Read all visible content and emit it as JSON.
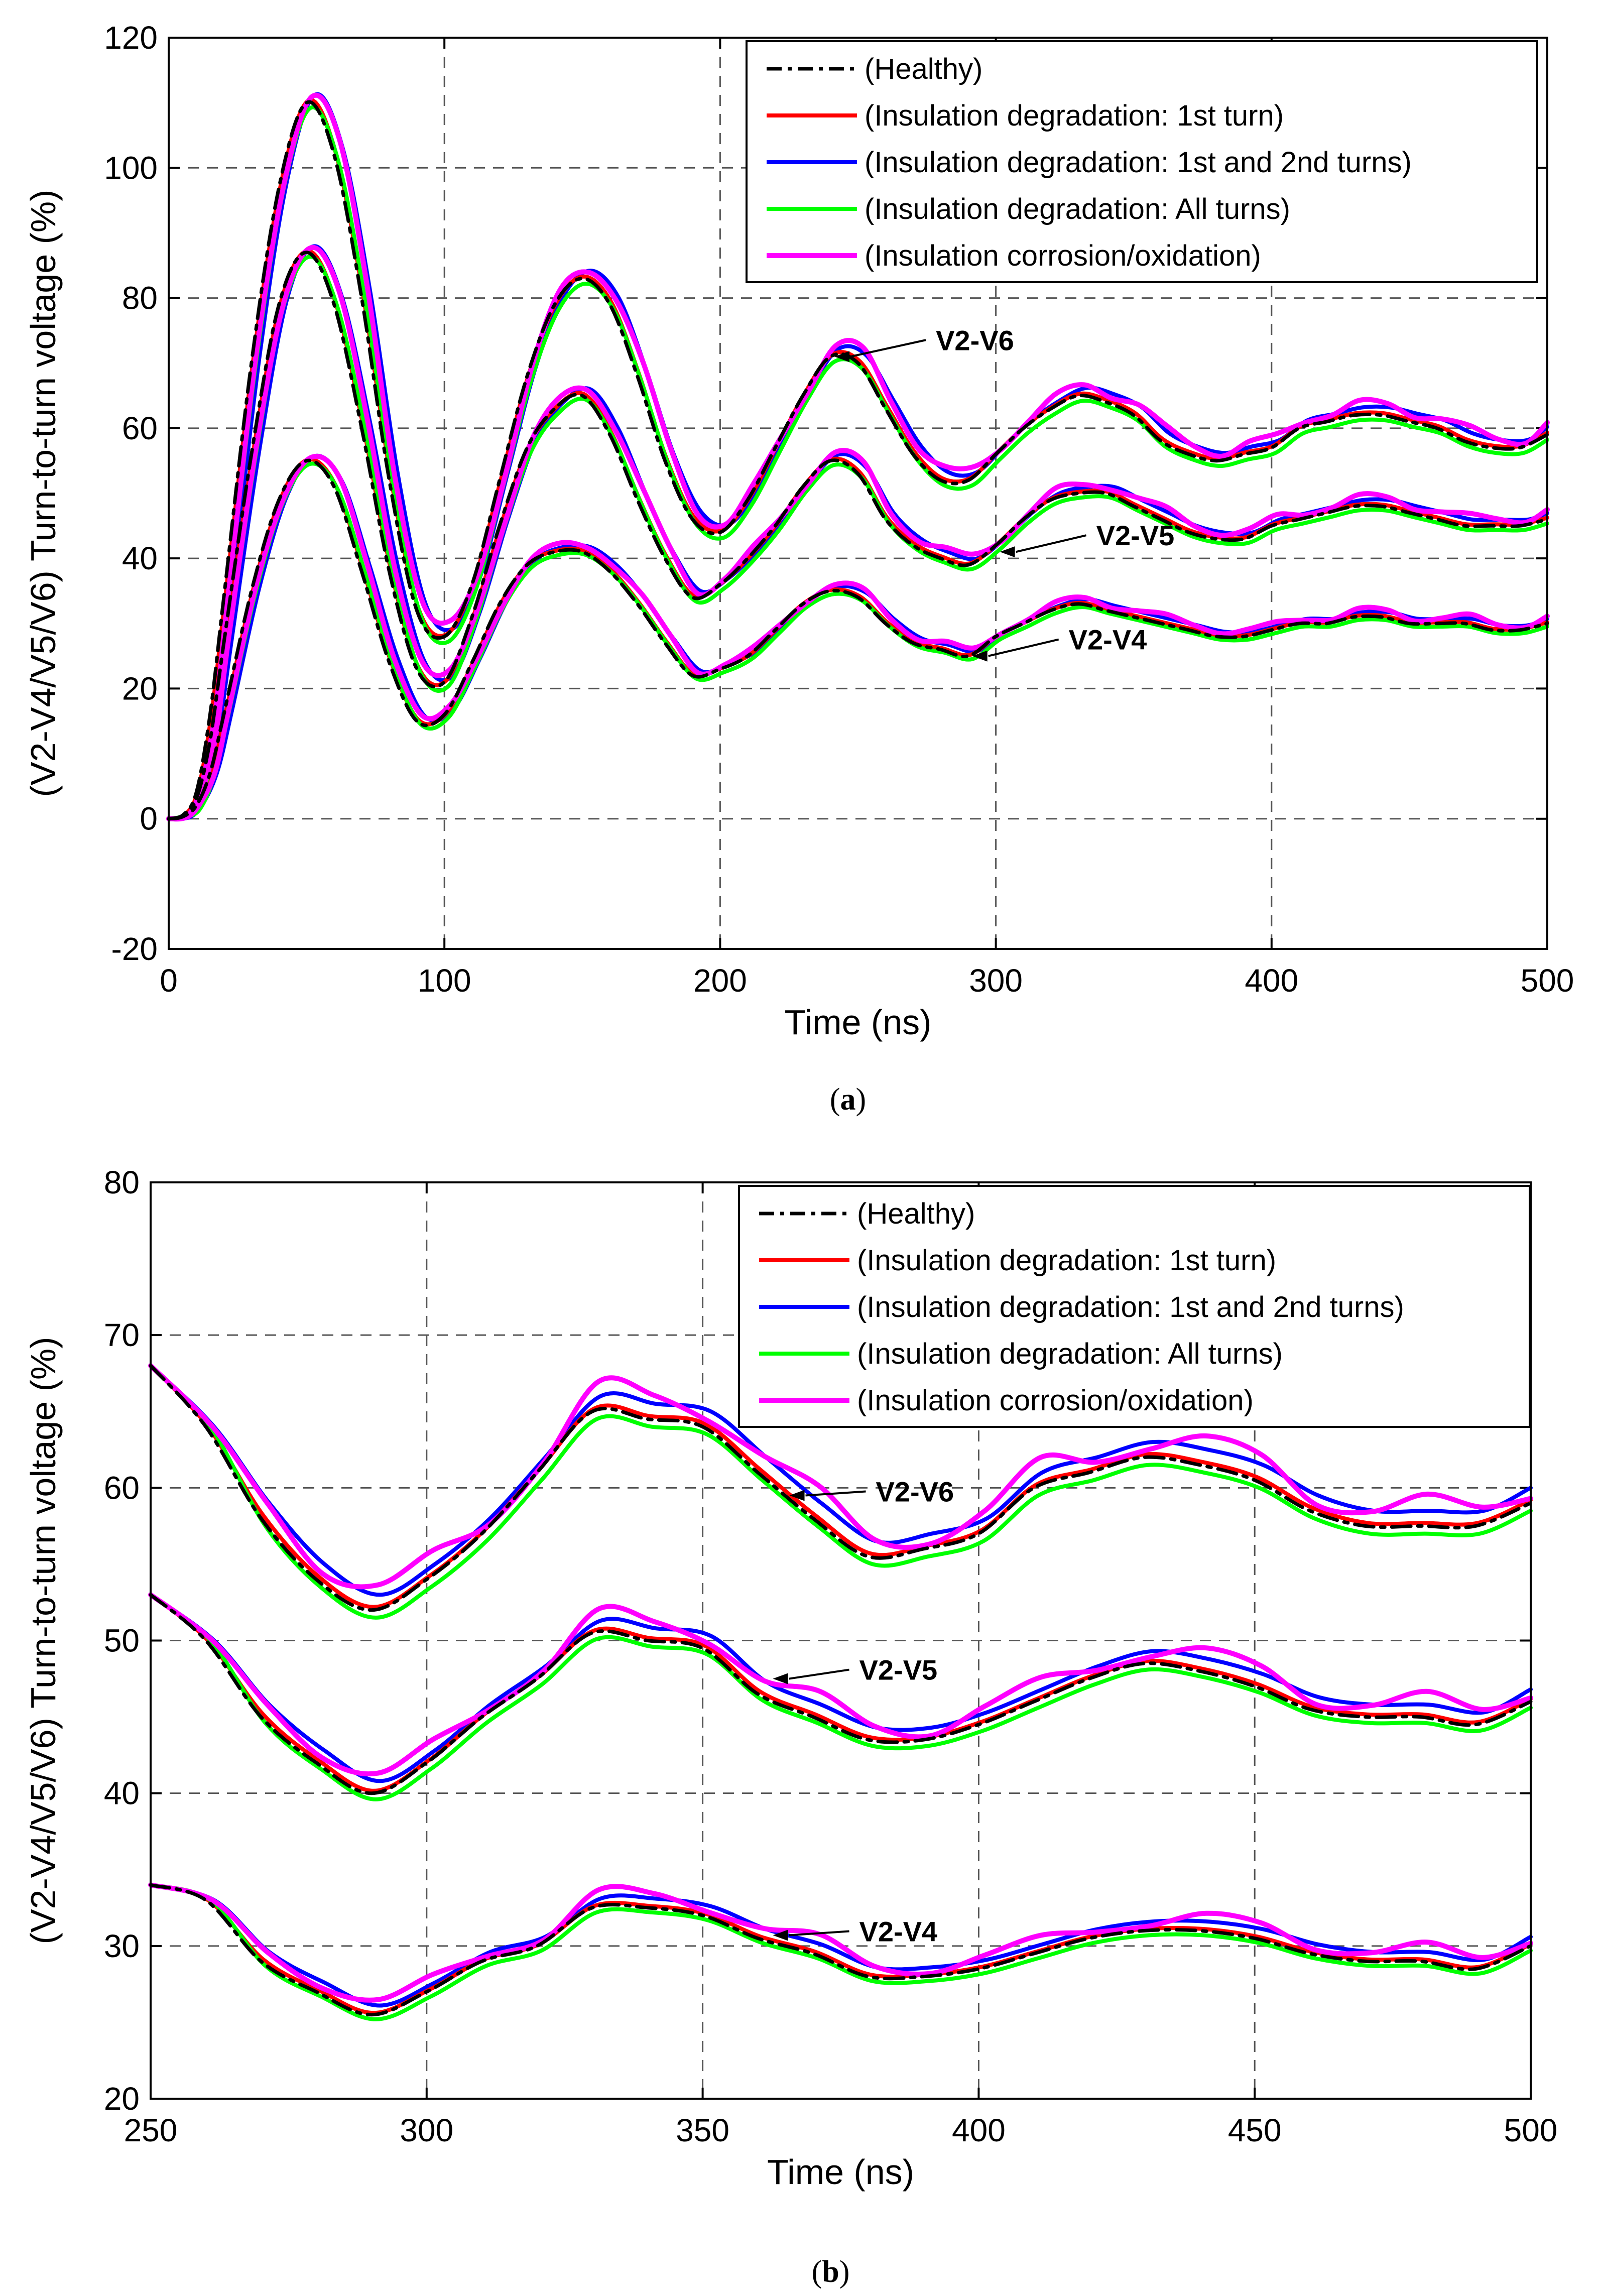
{
  "chart_data": [
    {
      "type": "line",
      "panel": "a",
      "caption": {
        "open": "(",
        "letter": "a",
        "close": ")"
      },
      "xlabel": "Time (ns)",
      "ylabel": "(V2-V4/V5/V6) Turn-to-turn voltage (%)",
      "xlim": [
        0,
        500
      ],
      "ylim": [
        -20,
        120
      ],
      "xticks": [
        0,
        100,
        200,
        300,
        400,
        500
      ],
      "yticks": [
        -20,
        0,
        20,
        40,
        60,
        80,
        100,
        120
      ],
      "xtick_labels": [
        "0",
        "100",
        "200",
        "300",
        "400",
        "500"
      ],
      "ytick_labels": [
        "-20",
        "0",
        "20",
        "40",
        "60",
        "80",
        "100",
        "120"
      ],
      "grid": true,
      "legend_position": "top-right",
      "annotations": [
        {
          "text": "V2-V6",
          "x": 240,
          "y": 71
        },
        {
          "text": "V2-V5",
          "x": 300,
          "y": 41
        },
        {
          "text": "V2-V4",
          "x": 290,
          "y": 25
        }
      ],
      "curves": {
        "V2-V6": {
          "x": [
            0,
            5,
            10,
            15,
            20,
            30,
            40,
            50,
            60,
            70,
            80,
            90,
            100,
            110,
            120,
            130,
            140,
            150,
            160,
            170,
            180,
            190,
            200,
            210,
            220,
            230,
            240,
            250,
            260,
            270,
            280,
            290,
            300,
            310,
            320,
            330,
            340,
            350,
            360,
            370,
            380,
            390,
            400,
            410,
            420,
            430,
            440,
            450,
            460,
            470,
            480,
            490,
            500
          ],
          "y": [
            0,
            0.5,
            4,
            16,
            34,
            70,
            97,
            110,
            102,
            80,
            52,
            32,
            28,
            36,
            52,
            68,
            79,
            83,
            79,
            68,
            55,
            46,
            44,
            49,
            57,
            65,
            71,
            70,
            63,
            56,
            52,
            52,
            56,
            60,
            63,
            65,
            64,
            62,
            58,
            56,
            55,
            56,
            57,
            60,
            61,
            62,
            62,
            61,
            60,
            58,
            57,
            57,
            59
          ]
        },
        "V2-V5": {
          "x": [
            0,
            5,
            10,
            15,
            20,
            30,
            40,
            50,
            60,
            70,
            80,
            90,
            100,
            110,
            120,
            130,
            140,
            150,
            160,
            170,
            180,
            190,
            200,
            210,
            220,
            230,
            240,
            250,
            260,
            270,
            280,
            290,
            300,
            310,
            320,
            330,
            340,
            350,
            360,
            370,
            380,
            390,
            400,
            410,
            420,
            430,
            440,
            450,
            460,
            470,
            480,
            490,
            500
          ],
          "y": [
            0,
            0.5,
            3,
            12,
            27,
            56,
            79,
            87,
            79,
            60,
            38,
            23,
            21,
            31,
            45,
            57,
            63,
            65,
            59,
            49,
            40,
            34,
            36,
            40,
            45,
            51,
            55,
            53,
            46,
            42,
            40,
            39,
            42,
            46,
            49,
            50,
            50,
            48,
            46,
            44,
            43,
            43,
            45,
            46,
            47,
            48,
            48,
            47,
            46,
            45,
            45,
            45,
            46
          ]
        },
        "V2-V4": {
          "x": [
            0,
            5,
            10,
            15,
            20,
            30,
            40,
            50,
            60,
            70,
            80,
            90,
            100,
            110,
            120,
            130,
            140,
            150,
            160,
            170,
            180,
            190,
            200,
            210,
            220,
            230,
            240,
            250,
            260,
            270,
            280,
            290,
            300,
            310,
            320,
            330,
            340,
            350,
            360,
            370,
            380,
            390,
            400,
            410,
            420,
            430,
            440,
            450,
            460,
            470,
            480,
            490,
            500
          ],
          "y": [
            0,
            0.3,
            2,
            7,
            16,
            35,
            49,
            55,
            51,
            38,
            24,
            15,
            16,
            24,
            33,
            39,
            41,
            41,
            38,
            33,
            27,
            22,
            23,
            25,
            29,
            33,
            35,
            34,
            30,
            27,
            26,
            25,
            28,
            30,
            32,
            33,
            32,
            31,
            30,
            29,
            28,
            28,
            29,
            30,
            30,
            31,
            31,
            30,
            30,
            30,
            29,
            29,
            30
          ]
        }
      },
      "series": [
        {
          "name": "(Healthy)",
          "color": "#000000",
          "style": "dashdot"
        },
        {
          "name": "(Insulation degradation: 1st turn)",
          "color": "#ff0000",
          "style": "solid"
        },
        {
          "name": "(Insulation degradation: 1st and 2nd turns)",
          "color": "#0000ff",
          "style": "solid"
        },
        {
          "name": "(Insulation degradation: All turns)",
          "color": "#00ff00",
          "style": "solid"
        },
        {
          "name": "(Insulation corrosion/oxidation)",
          "color": "#ff00ff",
          "style": "solid"
        }
      ]
    },
    {
      "type": "line",
      "panel": "b",
      "caption": {
        "open": "(",
        "letter": "b",
        "close": ")"
      },
      "xlabel": "Time (ns)",
      "ylabel": "(V2-V4/V5/V6) Turn-to-turn voltage (%)",
      "xlim": [
        250,
        500
      ],
      "ylim": [
        20,
        80
      ],
      "xticks": [
        250,
        300,
        350,
        400,
        450,
        500
      ],
      "yticks": [
        20,
        30,
        40,
        50,
        60,
        70,
        80
      ],
      "xtick_labels": [
        "250",
        "300",
        "350",
        "400",
        "450",
        "500"
      ],
      "ytick_labels": [
        "20",
        "30",
        "40",
        "50",
        "60",
        "70",
        "80"
      ],
      "grid": true,
      "legend_position": "top-right",
      "annotations": [
        {
          "text": "V2-V6",
          "x": 365,
          "y": 59.5
        },
        {
          "text": "V2-V5",
          "x": 362,
          "y": 47.5
        },
        {
          "text": "V2-V4",
          "x": 362,
          "y": 30.7
        }
      ],
      "curves": {
        "V2-V6": {
          "x": [
            250,
            260,
            270,
            280,
            290,
            300,
            310,
            320,
            330,
            340,
            350,
            360,
            370,
            380,
            390,
            400,
            410,
            420,
            430,
            440,
            450,
            460,
            470,
            480,
            490,
            500
          ],
          "y": [
            68,
            64,
            58,
            54,
            52,
            54,
            57,
            61,
            65,
            64.5,
            64,
            61,
            58,
            55.5,
            56,
            57,
            60,
            61,
            62,
            61.5,
            60.5,
            58.5,
            57.5,
            57.5,
            57.5,
            59
          ]
        },
        "V2-V5": {
          "x": [
            250,
            260,
            270,
            280,
            290,
            300,
            310,
            320,
            330,
            340,
            350,
            360,
            370,
            380,
            390,
            400,
            410,
            420,
            430,
            440,
            450,
            460,
            470,
            480,
            490,
            500
          ],
          "y": [
            53,
            50,
            45,
            42,
            40,
            42,
            45,
            47.5,
            50.5,
            50,
            49.5,
            46.5,
            45,
            43.5,
            43.5,
            44.5,
            46,
            47.5,
            48.5,
            48,
            47,
            45.5,
            45,
            45,
            44.5,
            46
          ]
        },
        "V2-V4": {
          "x": [
            250,
            260,
            270,
            280,
            290,
            300,
            310,
            320,
            330,
            340,
            350,
            360,
            370,
            380,
            390,
            400,
            410,
            420,
            430,
            440,
            450,
            460,
            470,
            480,
            490,
            500
          ],
          "y": [
            34,
            33,
            29,
            27,
            25.5,
            27,
            29,
            30,
            32.5,
            32.5,
            32,
            30.5,
            29.5,
            28,
            28,
            28.5,
            29.5,
            30.5,
            31,
            31,
            30.5,
            29.5,
            29,
            29,
            28.5,
            30
          ]
        }
      },
      "series": [
        {
          "name": "(Healthy)",
          "color": "#000000",
          "style": "dashdot"
        },
        {
          "name": "(Insulation degradation: 1st turn)",
          "color": "#ff0000",
          "style": "solid"
        },
        {
          "name": "(Insulation degradation: 1st and 2nd turns)",
          "color": "#0000ff",
          "style": "solid"
        },
        {
          "name": "(Insulation degradation: All turns)",
          "color": "#00ff00",
          "style": "solid"
        },
        {
          "name": "(Insulation corrosion/oxidation)",
          "color": "#ff00ff",
          "style": "solid"
        }
      ]
    }
  ]
}
